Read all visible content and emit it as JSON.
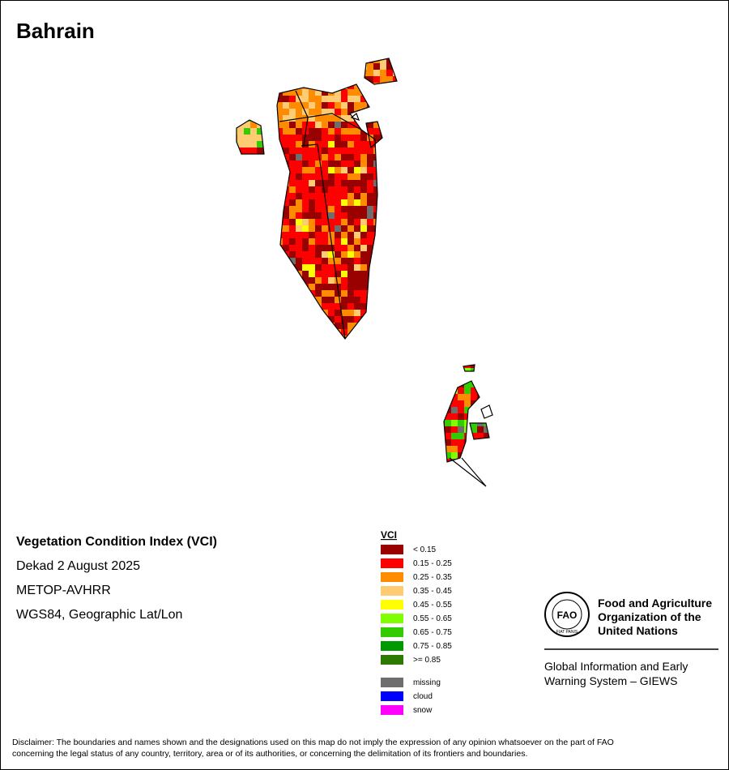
{
  "title": "Bahrain",
  "info": [
    "Vegetation Condition Index (VCI)",
    "Dekad 2 August 2025",
    "METOP-AVHRR",
    "WGS84, Geographic Lat/Lon"
  ],
  "legend": {
    "title": "VCI",
    "items": [
      {
        "label": "< 0.15",
        "color": "#990000"
      },
      {
        "label": "0.15 - 0.25",
        "color": "#ff0000"
      },
      {
        "label": "0.25 - 0.35",
        "color": "#ff8c00"
      },
      {
        "label": "0.35 - 0.45",
        "color": "#ffcc73"
      },
      {
        "label": "0.45 - 0.55",
        "color": "#ffff00"
      },
      {
        "label": "0.55 - 0.65",
        "color": "#80ff00"
      },
      {
        "label": "0.65 - 0.75",
        "color": "#33cc00"
      },
      {
        "label": "0.75 - 0.85",
        "color": "#009900"
      },
      {
        "label": ">= 0.85",
        "color": "#2e7a00"
      }
    ],
    "extra": [
      {
        "label": "missing",
        "color": "#6e6e6e"
      },
      {
        "label": "cloud",
        "color": "#0000ff"
      },
      {
        "label": "snow",
        "color": "#ff00ff"
      }
    ]
  },
  "organization": {
    "logo": {
      "letters": "FAO",
      "motto": "FIAT PANIS"
    },
    "name": [
      "Food and Agriculture",
      "Organization of the",
      "United Nations"
    ],
    "system": [
      "Global Information and Early",
      "Warning System – GIEWS"
    ]
  },
  "disclaimer": [
    "Disclaimer: The boundaries and names shown and the designations used on this map do not imply the expression of any opinion whatsoever on the part of FAO",
    "concerning the legal status of any country, territory, area or of its authorities, or concerning the delimitation of its frontiers and boundaries."
  ]
}
